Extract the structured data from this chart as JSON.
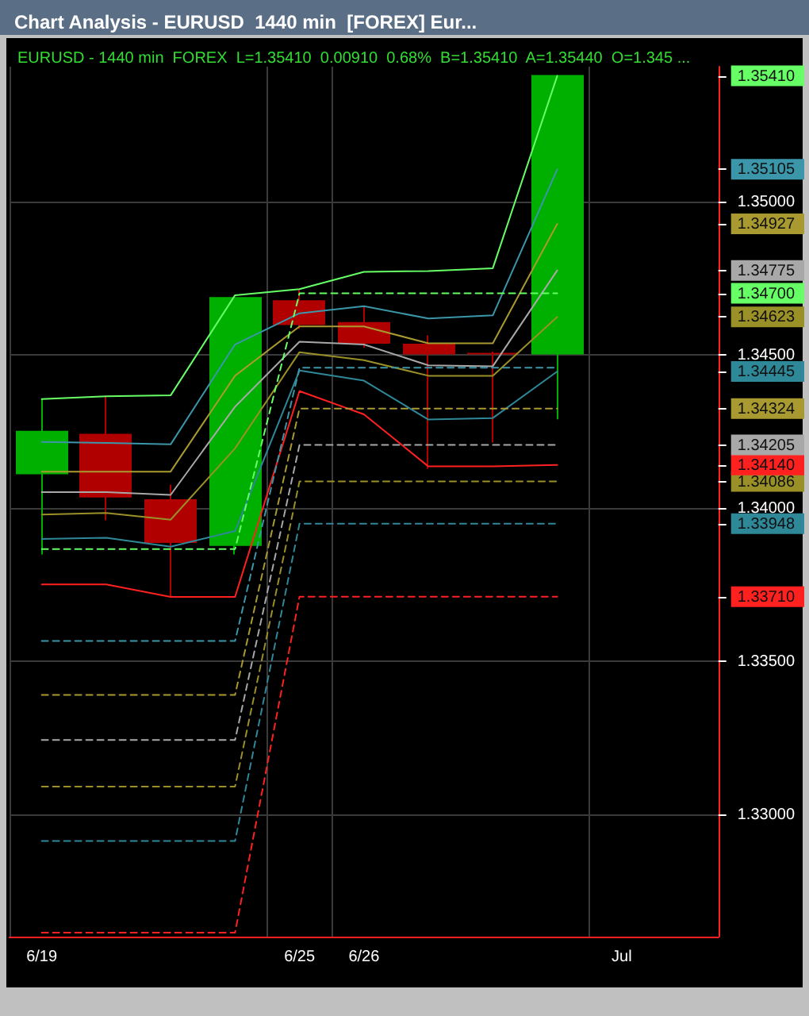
{
  "chart_data": {
    "type": "candlestick",
    "title": "Chart Analysis - EURUSD  1440 min  [FOREX] Eur...",
    "subtitle": "EURUSD - 1440 min  FOREX  L=1.35410  0.00910  0.68%  B=1.35410  A=1.35440  O=1.345 ...",
    "categories": [
      "6/19",
      null,
      null,
      null,
      "6/25",
      "6/26",
      null,
      null,
      null,
      "Jul",
      null
    ],
    "ohlc": [
      [
        1.34112,
        1.34355,
        1.33848,
        1.34249
      ],
      [
        1.34239,
        1.34365,
        1.33959,
        1.34036
      ],
      [
        1.34025,
        1.34076,
        1.33711,
        1.33888
      ],
      [
        1.33878,
        1.34685,
        1.33848,
        1.34685
      ],
      [
        1.34675,
        1.34711,
        1.34584,
        1.34599
      ],
      [
        1.34604,
        1.3466,
        1.34523,
        1.34538
      ],
      [
        1.34533,
        1.34563,
        1.34127,
        1.34503
      ],
      [
        1.34503,
        1.3451,
        1.34213,
        1.34503
      ],
      [
        1.34503,
        1.3541,
        1.34289,
        1.3541
      ],
      null,
      null
    ],
    "colors": [
      "#00b000",
      "#b00000",
      "#b00000",
      "#00b000",
      "#b00000",
      "#b00000",
      "#b00000",
      "#b00000",
      "#00b000",
      null,
      null
    ],
    "series": [
      {
        "type": "line",
        "color": "#66ff66",
        "line_style": "solid",
        "values": [
          1.34355,
          1.34364,
          1.34367,
          1.34694,
          1.34714,
          1.3477,
          1.34773,
          1.34782,
          1.3541,
          null,
          null
        ]
      },
      {
        "type": "line",
        "color": "#3a96a8",
        "line_style": "solid",
        "values": [
          1.34215,
          1.34212,
          1.34207,
          1.34533,
          1.34635,
          1.34658,
          1.34618,
          1.34628,
          1.35105,
          null,
          null
        ]
      },
      {
        "type": "line",
        "color": "#a89a30",
        "line_style": "solid",
        "values": [
          1.34118,
          1.34118,
          1.34118,
          1.34431,
          1.34592,
          1.34592,
          1.34537,
          1.34537,
          1.34927,
          null,
          null
        ]
      },
      {
        "type": "line",
        "color": "#a8a8a8",
        "line_style": "solid",
        "values": [
          1.34051,
          1.34051,
          1.34042,
          1.3433,
          1.34542,
          1.34533,
          1.34465,
          1.34462,
          1.34775,
          null,
          null
        ]
      },
      {
        "type": "line",
        "color": "#9a9028",
        "line_style": "solid",
        "values": [
          1.33978,
          1.33983,
          1.33961,
          1.34194,
          1.34508,
          1.34482,
          1.34431,
          1.34431,
          1.34623,
          null,
          null
        ]
      },
      {
        "type": "line",
        "color": "#2f8898",
        "line_style": "solid",
        "values": [
          1.33898,
          1.33902,
          1.33873,
          1.33924,
          1.34448,
          1.34415,
          1.34288,
          1.34293,
          1.34445,
          null,
          null
        ]
      },
      {
        "type": "line",
        "color": "#ff2020",
        "line_style": "solid",
        "values": [
          1.3375,
          1.3375,
          1.33709,
          1.33709,
          1.34381,
          1.34305,
          1.34135,
          1.34135,
          1.3414,
          null,
          null
        ]
      },
      {
        "type": "line",
        "color": "#66ff66",
        "line_style": "dashed",
        "values": [
          1.33865,
          1.33865,
          1.33865,
          1.33865,
          1.347,
          1.347,
          1.347,
          1.347,
          1.347,
          null,
          null
        ]
      },
      {
        "type": "line",
        "color": "#3a96a8",
        "line_style": "dashed",
        "values": [
          1.33565,
          1.33565,
          1.33565,
          1.33565,
          1.34457,
          1.34457,
          1.34457,
          1.34457,
          1.34457,
          null,
          null
        ]
      },
      {
        "type": "line",
        "color": "#a89a30",
        "line_style": "dashed",
        "values": [
          1.33389,
          1.33389,
          1.33389,
          1.33389,
          1.34324,
          1.34324,
          1.34324,
          1.34324,
          1.34324,
          null,
          null
        ]
      },
      {
        "type": "line",
        "color": "#a8a8a8",
        "line_style": "dashed",
        "values": [
          1.33242,
          1.33242,
          1.33242,
          1.33242,
          1.34205,
          1.34205,
          1.34205,
          1.34205,
          1.34205,
          null,
          null
        ]
      },
      {
        "type": "line",
        "color": "#9a9028",
        "line_style": "dashed",
        "values": [
          1.3309,
          1.3309,
          1.3309,
          1.3309,
          1.34086,
          1.34086,
          1.34086,
          1.34086,
          1.34086,
          null,
          null
        ]
      },
      {
        "type": "line",
        "color": "#2f8898",
        "line_style": "dashed",
        "values": [
          1.32912,
          1.32912,
          1.32912,
          1.32912,
          1.33948,
          1.33948,
          1.33948,
          1.33948,
          1.33948,
          null,
          null
        ]
      },
      {
        "type": "line",
        "color": "#ff2020",
        "line_style": "dashed",
        "values": [
          1.32613,
          1.32613,
          1.32613,
          1.32613,
          1.3371,
          1.3371,
          1.3371,
          1.3371,
          1.3371,
          null,
          null
        ]
      }
    ],
    "ylim": [
      1.326,
      1.3544
    ],
    "yticks": [
      {
        "value": 1.33,
        "label": "1.33000"
      },
      {
        "value": 1.335,
        "label": "1.33500"
      },
      {
        "value": 1.3371,
        "label": "1.33710"
      },
      {
        "value": 1.33948,
        "label": "1.33948"
      },
      {
        "value": 1.34,
        "label": "1.34000"
      },
      {
        "value": 1.34086,
        "label": "1.34086"
      },
      {
        "value": 1.3414,
        "label": "1.34140"
      },
      {
        "value": 1.34205,
        "label": "1.34205"
      },
      {
        "value": 1.34324,
        "label": "1.34324"
      },
      {
        "value": 1.34445,
        "label": "1.34445"
      },
      {
        "value": 1.345,
        "label": "1.34500"
      },
      {
        "value": 1.34623,
        "label": "1.34623"
      },
      {
        "value": 1.347,
        "label": "1.34700"
      },
      {
        "value": 1.34775,
        "label": "1.34775"
      },
      {
        "value": 1.34927,
        "label": "1.34927"
      },
      {
        "value": 1.35,
        "label": "1.35000"
      },
      {
        "value": 1.35105,
        "label": "1.35105"
      },
      {
        "value": 1.3541,
        "label": "1.35410"
      }
    ],
    "grid": true
  }
}
